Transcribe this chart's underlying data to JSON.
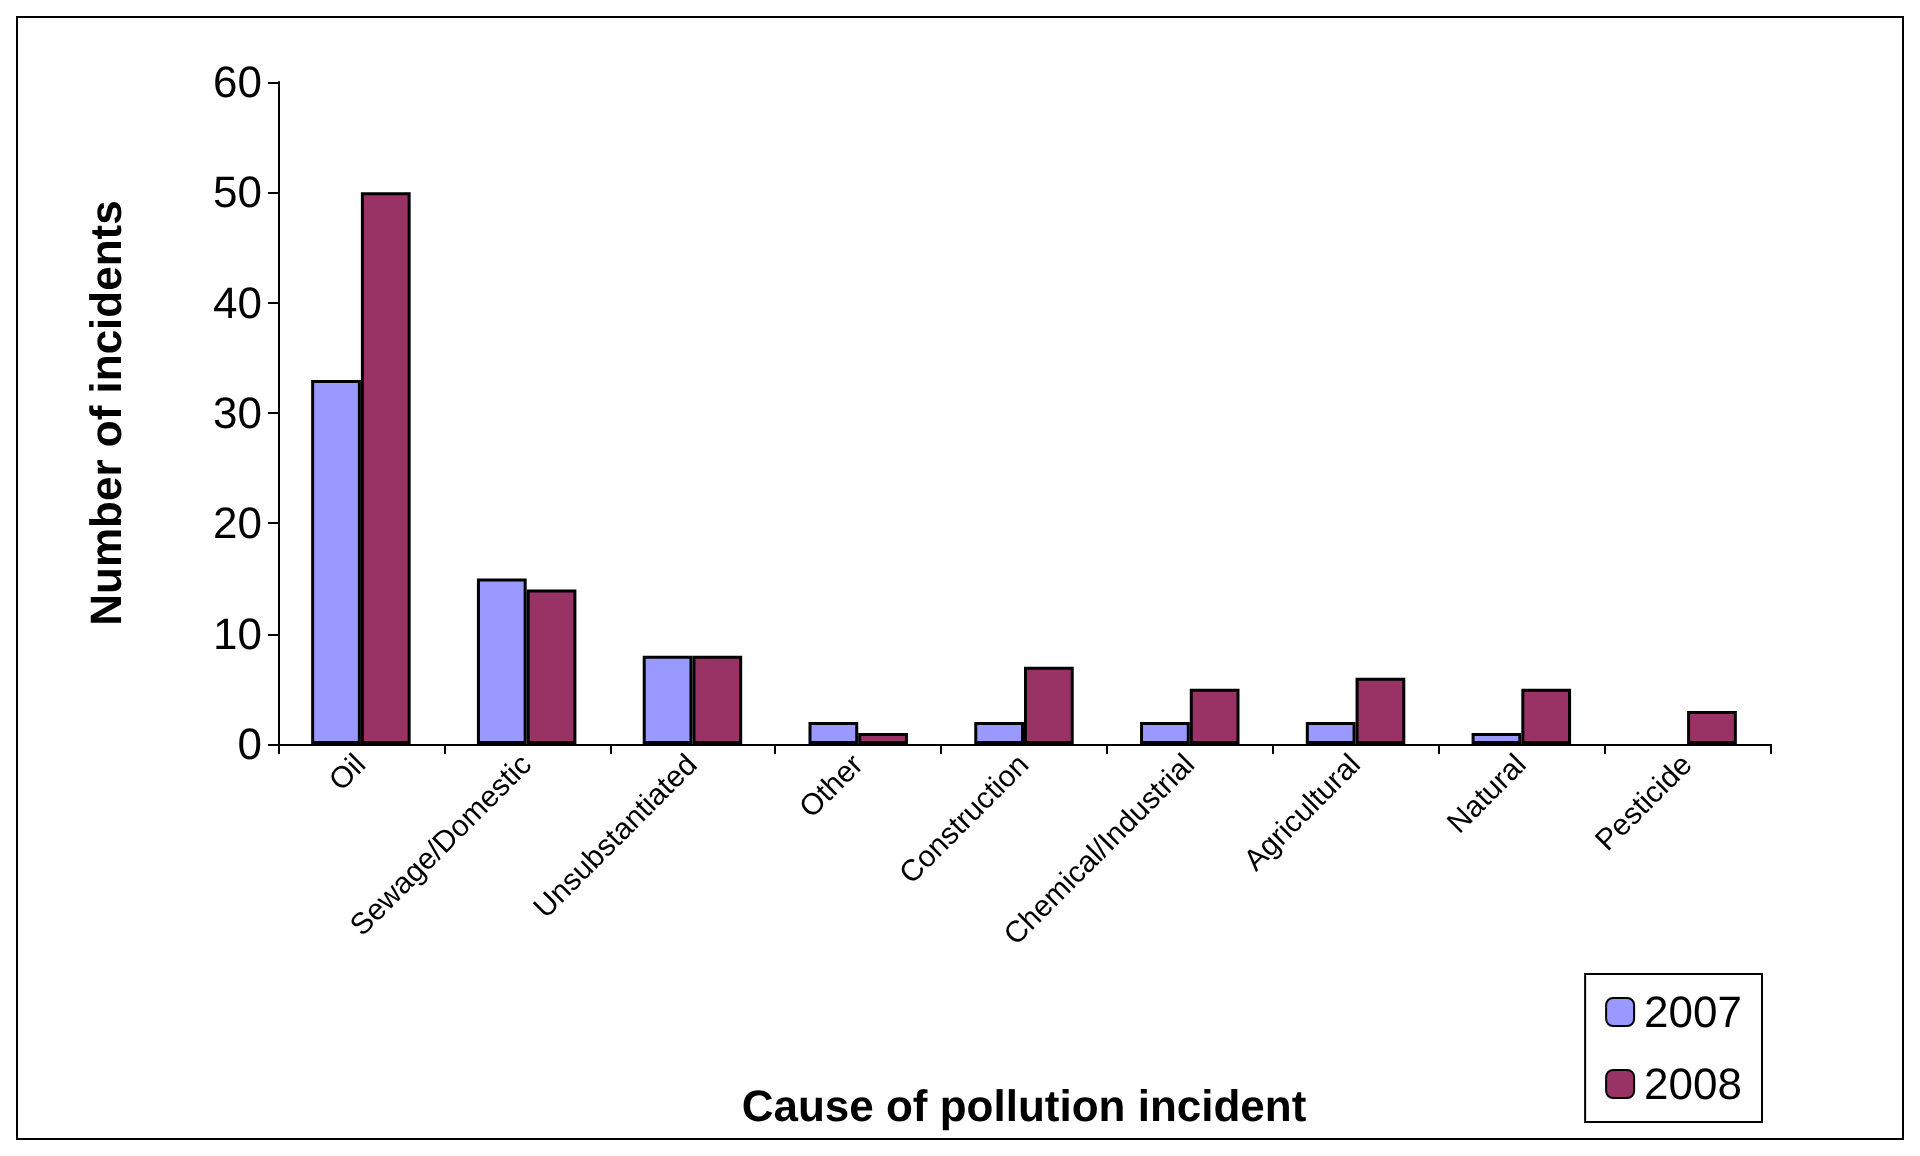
{
  "chart_data": {
    "type": "bar",
    "xlabel": "Cause of pollution incident",
    "ylabel": "Number of incidents",
    "categories": [
      "Oil",
      "Sewage/Domestic",
      "Unsubstantiated",
      "Other",
      "Construction",
      "Chemical/Industrial",
      "Agricultural",
      "Natural",
      "Pesticide"
    ],
    "series": [
      {
        "name": "2007",
        "color": "#9999ff",
        "values": [
          33,
          15,
          8,
          2,
          2,
          2,
          2,
          1,
          0
        ]
      },
      {
        "name": "2008",
        "color": "#993366",
        "values": [
          50,
          14,
          8,
          1,
          7,
          5,
          6,
          5,
          3
        ]
      }
    ],
    "ylim": [
      0,
      60
    ],
    "yticks": [
      0,
      10,
      20,
      30,
      40,
      50,
      60
    ],
    "grid": false,
    "legend": "bottom right"
  }
}
